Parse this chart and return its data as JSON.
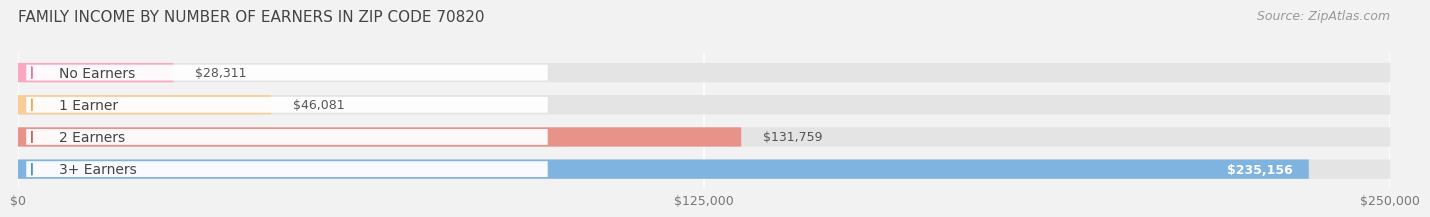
{
  "title": "FAMILY INCOME BY NUMBER OF EARNERS IN ZIP CODE 70820",
  "source": "Source: ZipAtlas.com",
  "categories": [
    "No Earners",
    "1 Earner",
    "2 Earners",
    "3+ Earners"
  ],
  "values": [
    28311,
    46081,
    131759,
    235156
  ],
  "value_labels": [
    "$28,311",
    "$46,081",
    "$131,759",
    "$235,156"
  ],
  "bar_colors": [
    "#f9a8c0",
    "#f9cc9a",
    "#e8938a",
    "#7fb3e0"
  ],
  "label_dot_colors": [
    "#f07098",
    "#f0a850",
    "#d06060",
    "#5090c8"
  ],
  "xlim": [
    0,
    250000
  ],
  "xticks": [
    0,
    125000,
    250000
  ],
  "xtick_labels": [
    "$0",
    "$125,000",
    "$250,000"
  ],
  "background_color": "#f2f2f2",
  "bar_bg_color": "#e4e4e4",
  "title_fontsize": 11,
  "source_fontsize": 9,
  "label_fontsize": 10,
  "value_fontsize": 9,
  "value_inside_threshold": 200000
}
